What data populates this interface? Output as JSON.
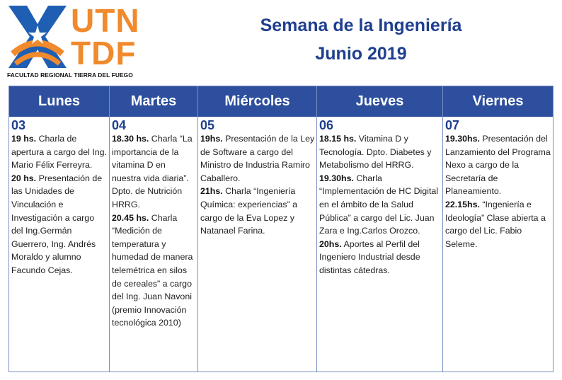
{
  "logo": {
    "utn": "UTN",
    "tdf": "TDF",
    "faculty": "FACULTAD REGIONAL TIERRA DEL FUEGO",
    "colors": {
      "blue": "#1f5fb3",
      "orange": "#f08a2c"
    }
  },
  "header": {
    "title": "Semana de la Ingeniería",
    "subtitle": "Junio  2019"
  },
  "days": [
    {
      "name": "Lunes",
      "number": "03",
      "entries": [
        {
          "time": "19 hs.",
          "text": " Charla de apertura a cargo del Ing. Mario Félix Ferreyra."
        },
        {
          "time": "20 hs.",
          "text": " Presentación de las Unidades de Vinculación e Investigación a cargo del Ing.Germán Guerrero, Ing. Andrés Moraldo y alumno Facundo Cejas."
        }
      ]
    },
    {
      "name": "Martes",
      "number": "04",
      "entries": [
        {
          "time": "18.30 hs.",
          "text": " Charla “La importancia de la vitamina D en nuestra vida diaria”. Dpto. de Nutrición HRRG."
        },
        {
          "time": "20.45 hs.",
          "text": " Charla “Medición de temperatura y humedad de manera telemétrica en silos de cereales” a cargo del Ing. Juan Navoni  (premio Innovación tecnológica 2010)"
        }
      ]
    },
    {
      "name": "Miércoles",
      "number": "05",
      "entries": [
        {
          "time": "19hs.",
          "text": " Presentación de la Ley de Software a cargo del Ministro de Industria Ramiro Caballero."
        },
        {
          "time": "21hs.",
          "text": " Charla “Ingeniería Química: experiencias” a cargo de la Eva Lopez y Natanael Farina."
        }
      ]
    },
    {
      "name": "Jueves",
      "number": "06",
      "entries": [
        {
          "time": "18.15 hs.",
          "text": " Vitamina D y Tecnología. Dpto. Diabetes y Metabolismo del HRRG."
        },
        {
          "time": "19.30hs.",
          "text": " Charla “Implementación de HC Digital en el ámbito de la Salud Pública” a cargo del Lic. Juan Zara e Ing.Carlos Orozco."
        },
        {
          "time": "20hs.",
          "text": " Aportes  al Perfil del Ingeniero Industrial desde distintas cátedras."
        }
      ]
    },
    {
      "name": "Viernes",
      "number": "07",
      "entries": [
        {
          "time": "19.30hs.",
          "text": " Presentación del Lanzamiento del Programa Nexo a cargo de la Secretaría de Planeamiento."
        },
        {
          "time": "22.15hs.",
          "text": " “Ingeniería e Ideología” Clase abierta a cargo del Lic. Fabio Seleme."
        }
      ]
    }
  ]
}
